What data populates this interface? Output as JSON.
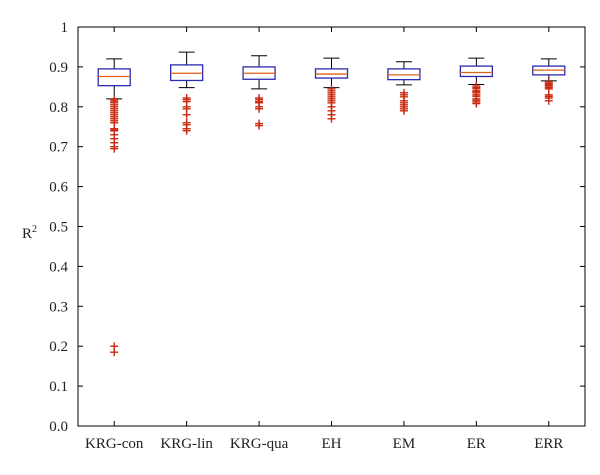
{
  "chart_data": {
    "type": "boxplot",
    "title": "",
    "xlabel": "",
    "ylabel": "R",
    "ylabel_superscript": "2",
    "ylim": [
      0,
      1
    ],
    "yticks": [
      "0.0",
      "0.1",
      "0.2",
      "0.3",
      "0.4",
      "0.5",
      "0.6",
      "0.7",
      "0.8",
      "0.9",
      "1"
    ],
    "grid": false,
    "categories": [
      "KRG-con",
      "KRG-lin",
      "KRG-qua",
      "EH",
      "EM",
      "ER",
      "ERR"
    ],
    "boxes": [
      {
        "name": "KRG-con",
        "whisker_low": 0.82,
        "q1": 0.853,
        "median": 0.876,
        "q3": 0.895,
        "whisker_high": 0.92,
        "outliers": [
          0.818,
          0.814,
          0.81,
          0.805,
          0.8,
          0.795,
          0.79,
          0.785,
          0.78,
          0.775,
          0.77,
          0.765,
          0.76,
          0.745,
          0.742,
          0.74,
          0.73,
          0.72,
          0.71,
          0.7,
          0.695,
          0.2,
          0.185
        ]
      },
      {
        "name": "KRG-lin",
        "whisker_low": 0.848,
        "q1": 0.866,
        "median": 0.884,
        "q3": 0.905,
        "whisker_high": 0.937,
        "outliers": [
          0.822,
          0.818,
          0.813,
          0.8,
          0.795,
          0.78,
          0.76,
          0.755,
          0.745,
          0.74
        ]
      },
      {
        "name": "KRG-qua",
        "whisker_low": 0.845,
        "q1": 0.869,
        "median": 0.884,
        "q3": 0.9,
        "whisker_high": 0.928,
        "outliers": [
          0.822,
          0.818,
          0.813,
          0.81,
          0.8,
          0.795,
          0.758,
          0.753
        ]
      },
      {
        "name": "EH",
        "whisker_low": 0.848,
        "q1": 0.872,
        "median": 0.882,
        "q3": 0.895,
        "whisker_high": 0.922,
        "outliers": [
          0.845,
          0.84,
          0.835,
          0.83,
          0.825,
          0.82,
          0.815,
          0.81,
          0.8,
          0.79,
          0.78,
          0.77
        ]
      },
      {
        "name": "EM",
        "whisker_low": 0.855,
        "q1": 0.868,
        "median": 0.88,
        "q3": 0.895,
        "whisker_high": 0.913,
        "outliers": [
          0.835,
          0.83,
          0.825,
          0.815,
          0.81,
          0.805,
          0.8,
          0.795,
          0.79
        ]
      },
      {
        "name": "ER",
        "whisker_low": 0.856,
        "q1": 0.876,
        "median": 0.886,
        "q3": 0.902,
        "whisker_high": 0.922,
        "outliers": [
          0.852,
          0.848,
          0.845,
          0.84,
          0.838,
          0.835,
          0.83,
          0.826,
          0.82,
          0.816,
          0.812,
          0.808
        ]
      },
      {
        "name": "ERR",
        "whisker_low": 0.865,
        "q1": 0.88,
        "median": 0.892,
        "q3": 0.902,
        "whisker_high": 0.92,
        "outliers": [
          0.862,
          0.858,
          0.855,
          0.852,
          0.848,
          0.845,
          0.83,
          0.826,
          0.822,
          0.815
        ]
      }
    ],
    "colors": {
      "box": "#2b2bb0",
      "median": "#e0601a",
      "whisker": "#000000",
      "outlier": "#cc2a10",
      "axes": "#000000"
    }
  }
}
